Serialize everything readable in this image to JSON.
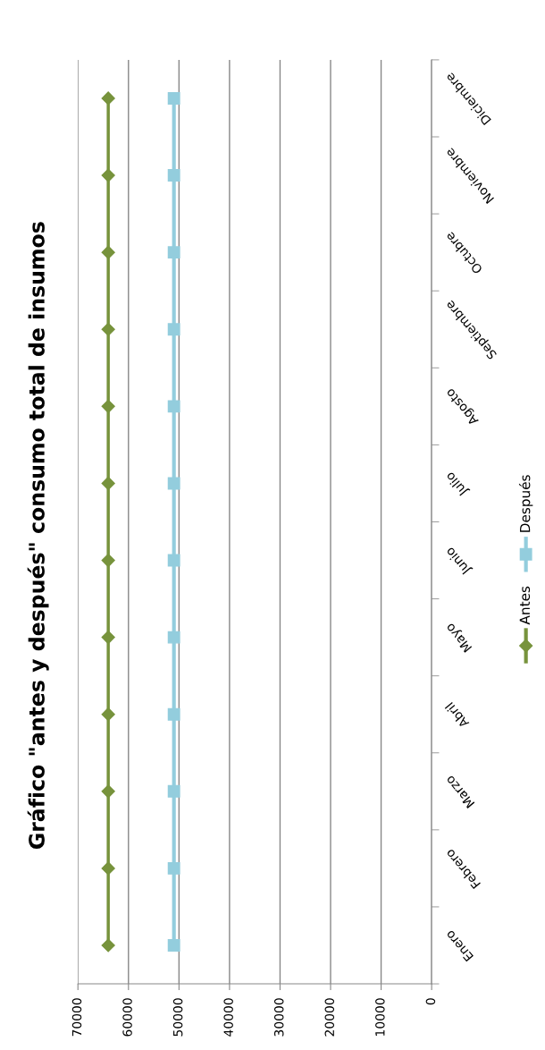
{
  "chart_data": {
    "type": "line",
    "title": "Gráfico \"antes y después\" consumo total de insumos",
    "orientation": "horizontal",
    "categories": [
      "Diciembre",
      "Noviembre",
      "Octubre",
      "Septiembre",
      "Agosto",
      "Julio",
      "Junio",
      "Mayo",
      "Abril",
      "Marzo",
      "Febrero",
      "Enero"
    ],
    "series": [
      {
        "name": "Antes",
        "color": "#77933c",
        "marker": "diamond",
        "values": [
          64000,
          64000,
          64000,
          64000,
          64000,
          64000,
          64000,
          64000,
          64000,
          64000,
          64000,
          64000
        ]
      },
      {
        "name": "Después",
        "color": "#93cddd",
        "marker": "square",
        "values": [
          51000,
          51000,
          51000,
          51000,
          51000,
          51000,
          51000,
          51000,
          51000,
          51000,
          51000,
          51000
        ]
      }
    ],
    "xlim": [
      70000,
      0
    ],
    "xticks": [
      70000,
      60000,
      50000,
      40000,
      30000,
      20000,
      10000,
      0
    ],
    "grid": "x",
    "legend": "right"
  }
}
